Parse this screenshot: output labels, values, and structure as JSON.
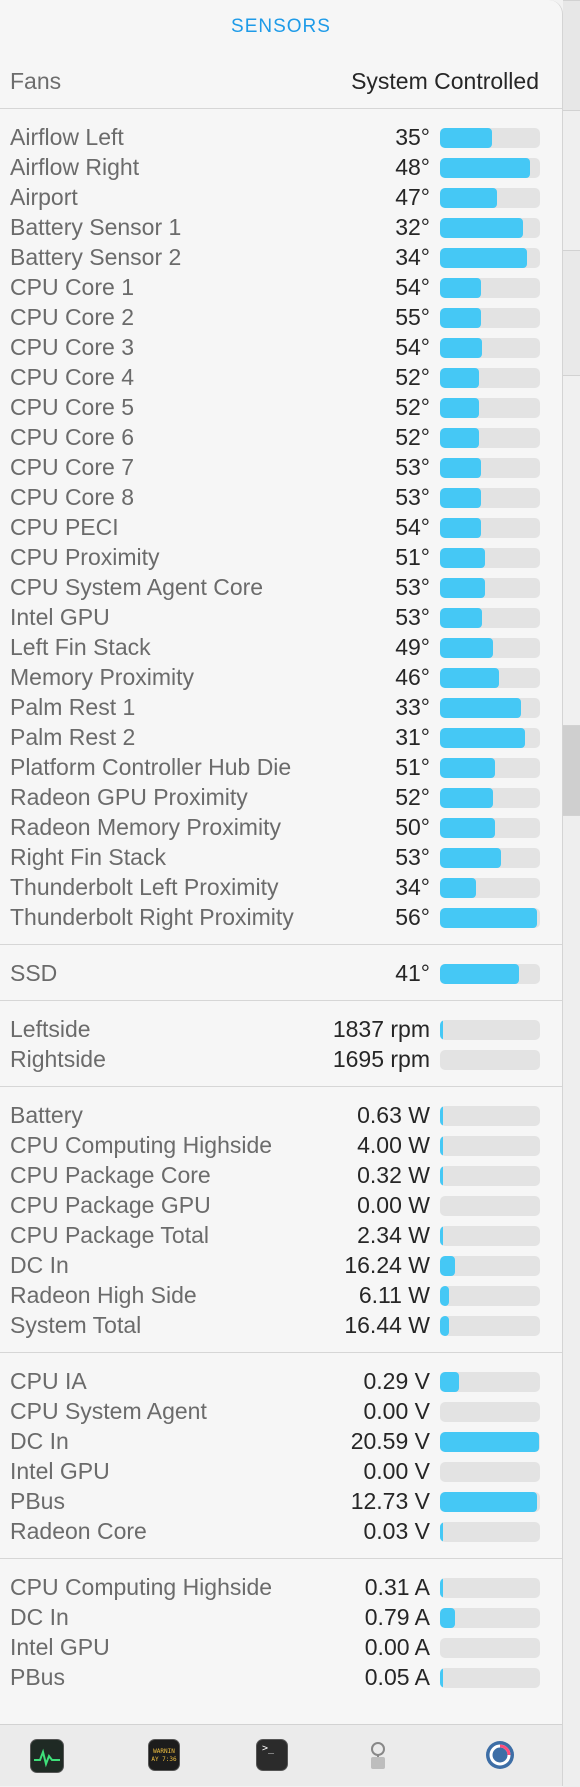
{
  "header": {
    "title": "SENSORS"
  },
  "fans_mode": {
    "label": "Fans",
    "value": "System Controlled"
  },
  "sections": [
    {
      "name": "temperatures",
      "rows": [
        {
          "label": "Airflow Left",
          "value": "35°",
          "level": 0.52
        },
        {
          "label": "Airflow Right",
          "value": "48°",
          "level": 0.9
        },
        {
          "label": "Airport",
          "value": "47°",
          "level": 0.57
        },
        {
          "label": "Battery Sensor 1",
          "value": "32°",
          "level": 0.83
        },
        {
          "label": "Battery Sensor 2",
          "value": "34°",
          "level": 0.87
        },
        {
          "label": "CPU Core 1",
          "value": "54°",
          "level": 0.41
        },
        {
          "label": "CPU Core 2",
          "value": "55°",
          "level": 0.41
        },
        {
          "label": "CPU Core 3",
          "value": "54°",
          "level": 0.42
        },
        {
          "label": "CPU Core 4",
          "value": "52°",
          "level": 0.39
        },
        {
          "label": "CPU Core 5",
          "value": "52°",
          "level": 0.39
        },
        {
          "label": "CPU Core 6",
          "value": "52°",
          "level": 0.39
        },
        {
          "label": "CPU Core 7",
          "value": "53°",
          "level": 0.41
        },
        {
          "label": "CPU Core 8",
          "value": "53°",
          "level": 0.41
        },
        {
          "label": "CPU PECI",
          "value": "54°",
          "level": 0.41
        },
        {
          "label": "CPU Proximity",
          "value": "51°",
          "level": 0.45
        },
        {
          "label": "CPU System Agent Core",
          "value": "53°",
          "level": 0.45
        },
        {
          "label": "Intel GPU",
          "value": "53°",
          "level": 0.42
        },
        {
          "label": "Left Fin Stack",
          "value": "49°",
          "level": 0.53
        },
        {
          "label": "Memory Proximity",
          "value": "46°",
          "level": 0.59
        },
        {
          "label": "Palm Rest 1",
          "value": "33°",
          "level": 0.81
        },
        {
          "label": "Palm Rest 2",
          "value": "31°",
          "level": 0.85
        },
        {
          "label": "Platform Controller Hub Die",
          "value": "51°",
          "level": 0.55
        },
        {
          "label": "Radeon GPU Proximity",
          "value": "52°",
          "level": 0.53
        },
        {
          "label": "Radeon Memory Proximity",
          "value": "50°",
          "level": 0.55
        },
        {
          "label": "Right Fin Stack",
          "value": "53°",
          "level": 0.61
        },
        {
          "label": "Thunderbolt Left Proximity",
          "value": "34°",
          "level": 0.36
        },
        {
          "label": "Thunderbolt Right Proximity",
          "value": "56°",
          "level": 0.97
        }
      ]
    },
    {
      "name": "ssd",
      "rows": [
        {
          "label": "SSD",
          "value": "41°",
          "level": 0.79
        }
      ]
    },
    {
      "name": "fans",
      "rows": [
        {
          "label": "Leftside",
          "value": "1837 rpm",
          "level": 0.02
        },
        {
          "label": "Rightside",
          "value": "1695 rpm",
          "level": 0.0
        }
      ]
    },
    {
      "name": "power",
      "rows": [
        {
          "label": "Battery",
          "value": "0.63 W",
          "level": 0.02
        },
        {
          "label": "CPU Computing Highside",
          "value": "4.00 W",
          "level": 0.02
        },
        {
          "label": "CPU Package Core",
          "value": "0.32 W",
          "level": 0.02
        },
        {
          "label": "CPU Package GPU",
          "value": "0.00 W",
          "level": 0.0
        },
        {
          "label": "CPU Package Total",
          "value": "2.34 W",
          "level": 0.03
        },
        {
          "label": "DC In",
          "value": "16.24 W",
          "level": 0.15
        },
        {
          "label": "Radeon High Side",
          "value": "6.11 W",
          "level": 0.09
        },
        {
          "label": "System Total",
          "value": "16.44 W",
          "level": 0.09
        }
      ]
    },
    {
      "name": "voltage",
      "rows": [
        {
          "label": "CPU IA",
          "value": "0.29 V",
          "level": 0.19
        },
        {
          "label": "CPU System Agent",
          "value": "0.00 V",
          "level": 0.0
        },
        {
          "label": "DC In",
          "value": "20.59 V",
          "level": 0.99
        },
        {
          "label": "Intel GPU",
          "value": "0.00 V",
          "level": 0.0
        },
        {
          "label": "PBus",
          "value": "12.73 V",
          "level": 0.97
        },
        {
          "label": "Radeon Core",
          "value": "0.03 V",
          "level": 0.02
        }
      ]
    },
    {
      "name": "current",
      "rows": [
        {
          "label": "CPU Computing Highside",
          "value": "0.31 A",
          "level": 0.02
        },
        {
          "label": "DC In",
          "value": "0.79 A",
          "level": 0.15
        },
        {
          "label": "Intel GPU",
          "value": "0.00 A",
          "level": 0.0
        },
        {
          "label": "PBus",
          "value": "0.05 A",
          "level": 0.02
        }
      ]
    }
  ],
  "dock": {
    "icons": [
      {
        "name": "activity-monitor-icon",
        "color": "#1f2a24"
      },
      {
        "name": "console-icon",
        "color": "#1c1c1c",
        "text": "WARNIN\nAY 7:36"
      },
      {
        "name": "terminal-icon",
        "color": "#2b2b2b"
      },
      {
        "name": "ios-simulator-icon",
        "color": "#cfcfcf"
      },
      {
        "name": "istat-menus-icon",
        "color": "#3d6ea6"
      }
    ]
  }
}
